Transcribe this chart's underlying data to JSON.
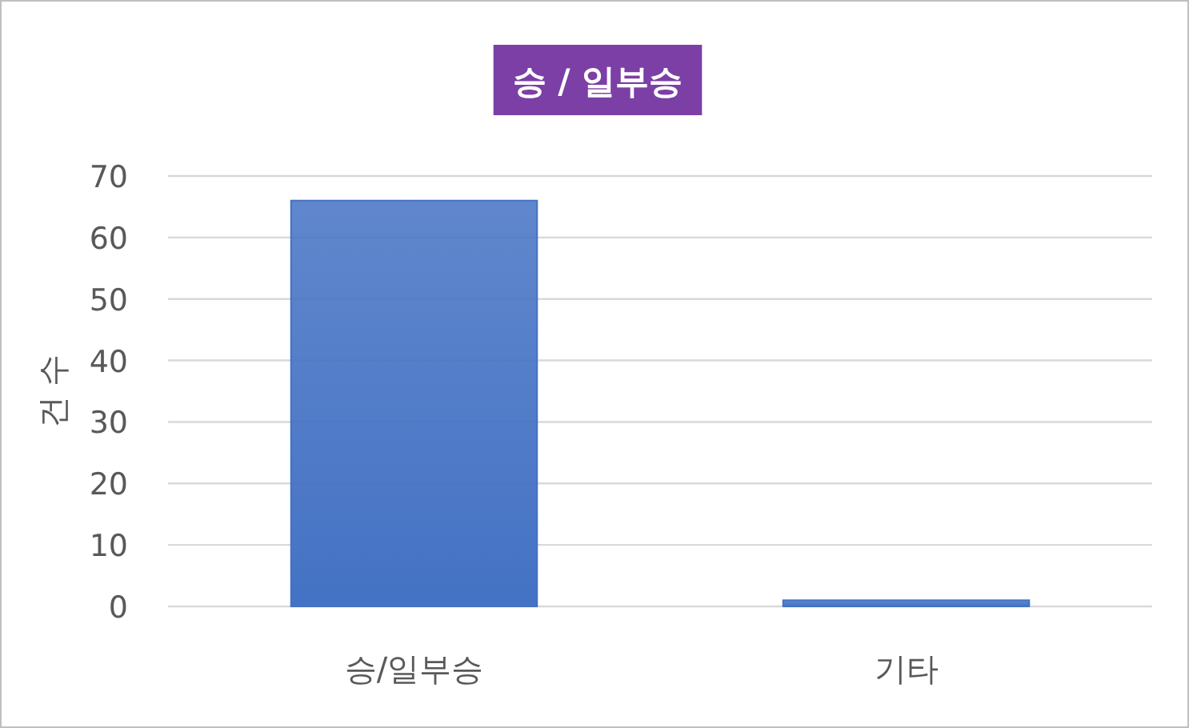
{
  "chart_data": {
    "type": "bar",
    "title": "승 / 일부승",
    "ylabel": "건 수",
    "categories": [
      "승/일부승",
      "기타"
    ],
    "values": [
      66,
      1
    ],
    "color": "#4472c4",
    "ylim": [
      0,
      70
    ],
    "yticks": [
      0,
      10,
      20,
      30,
      40,
      50,
      60,
      70
    ],
    "grid": "y"
  }
}
